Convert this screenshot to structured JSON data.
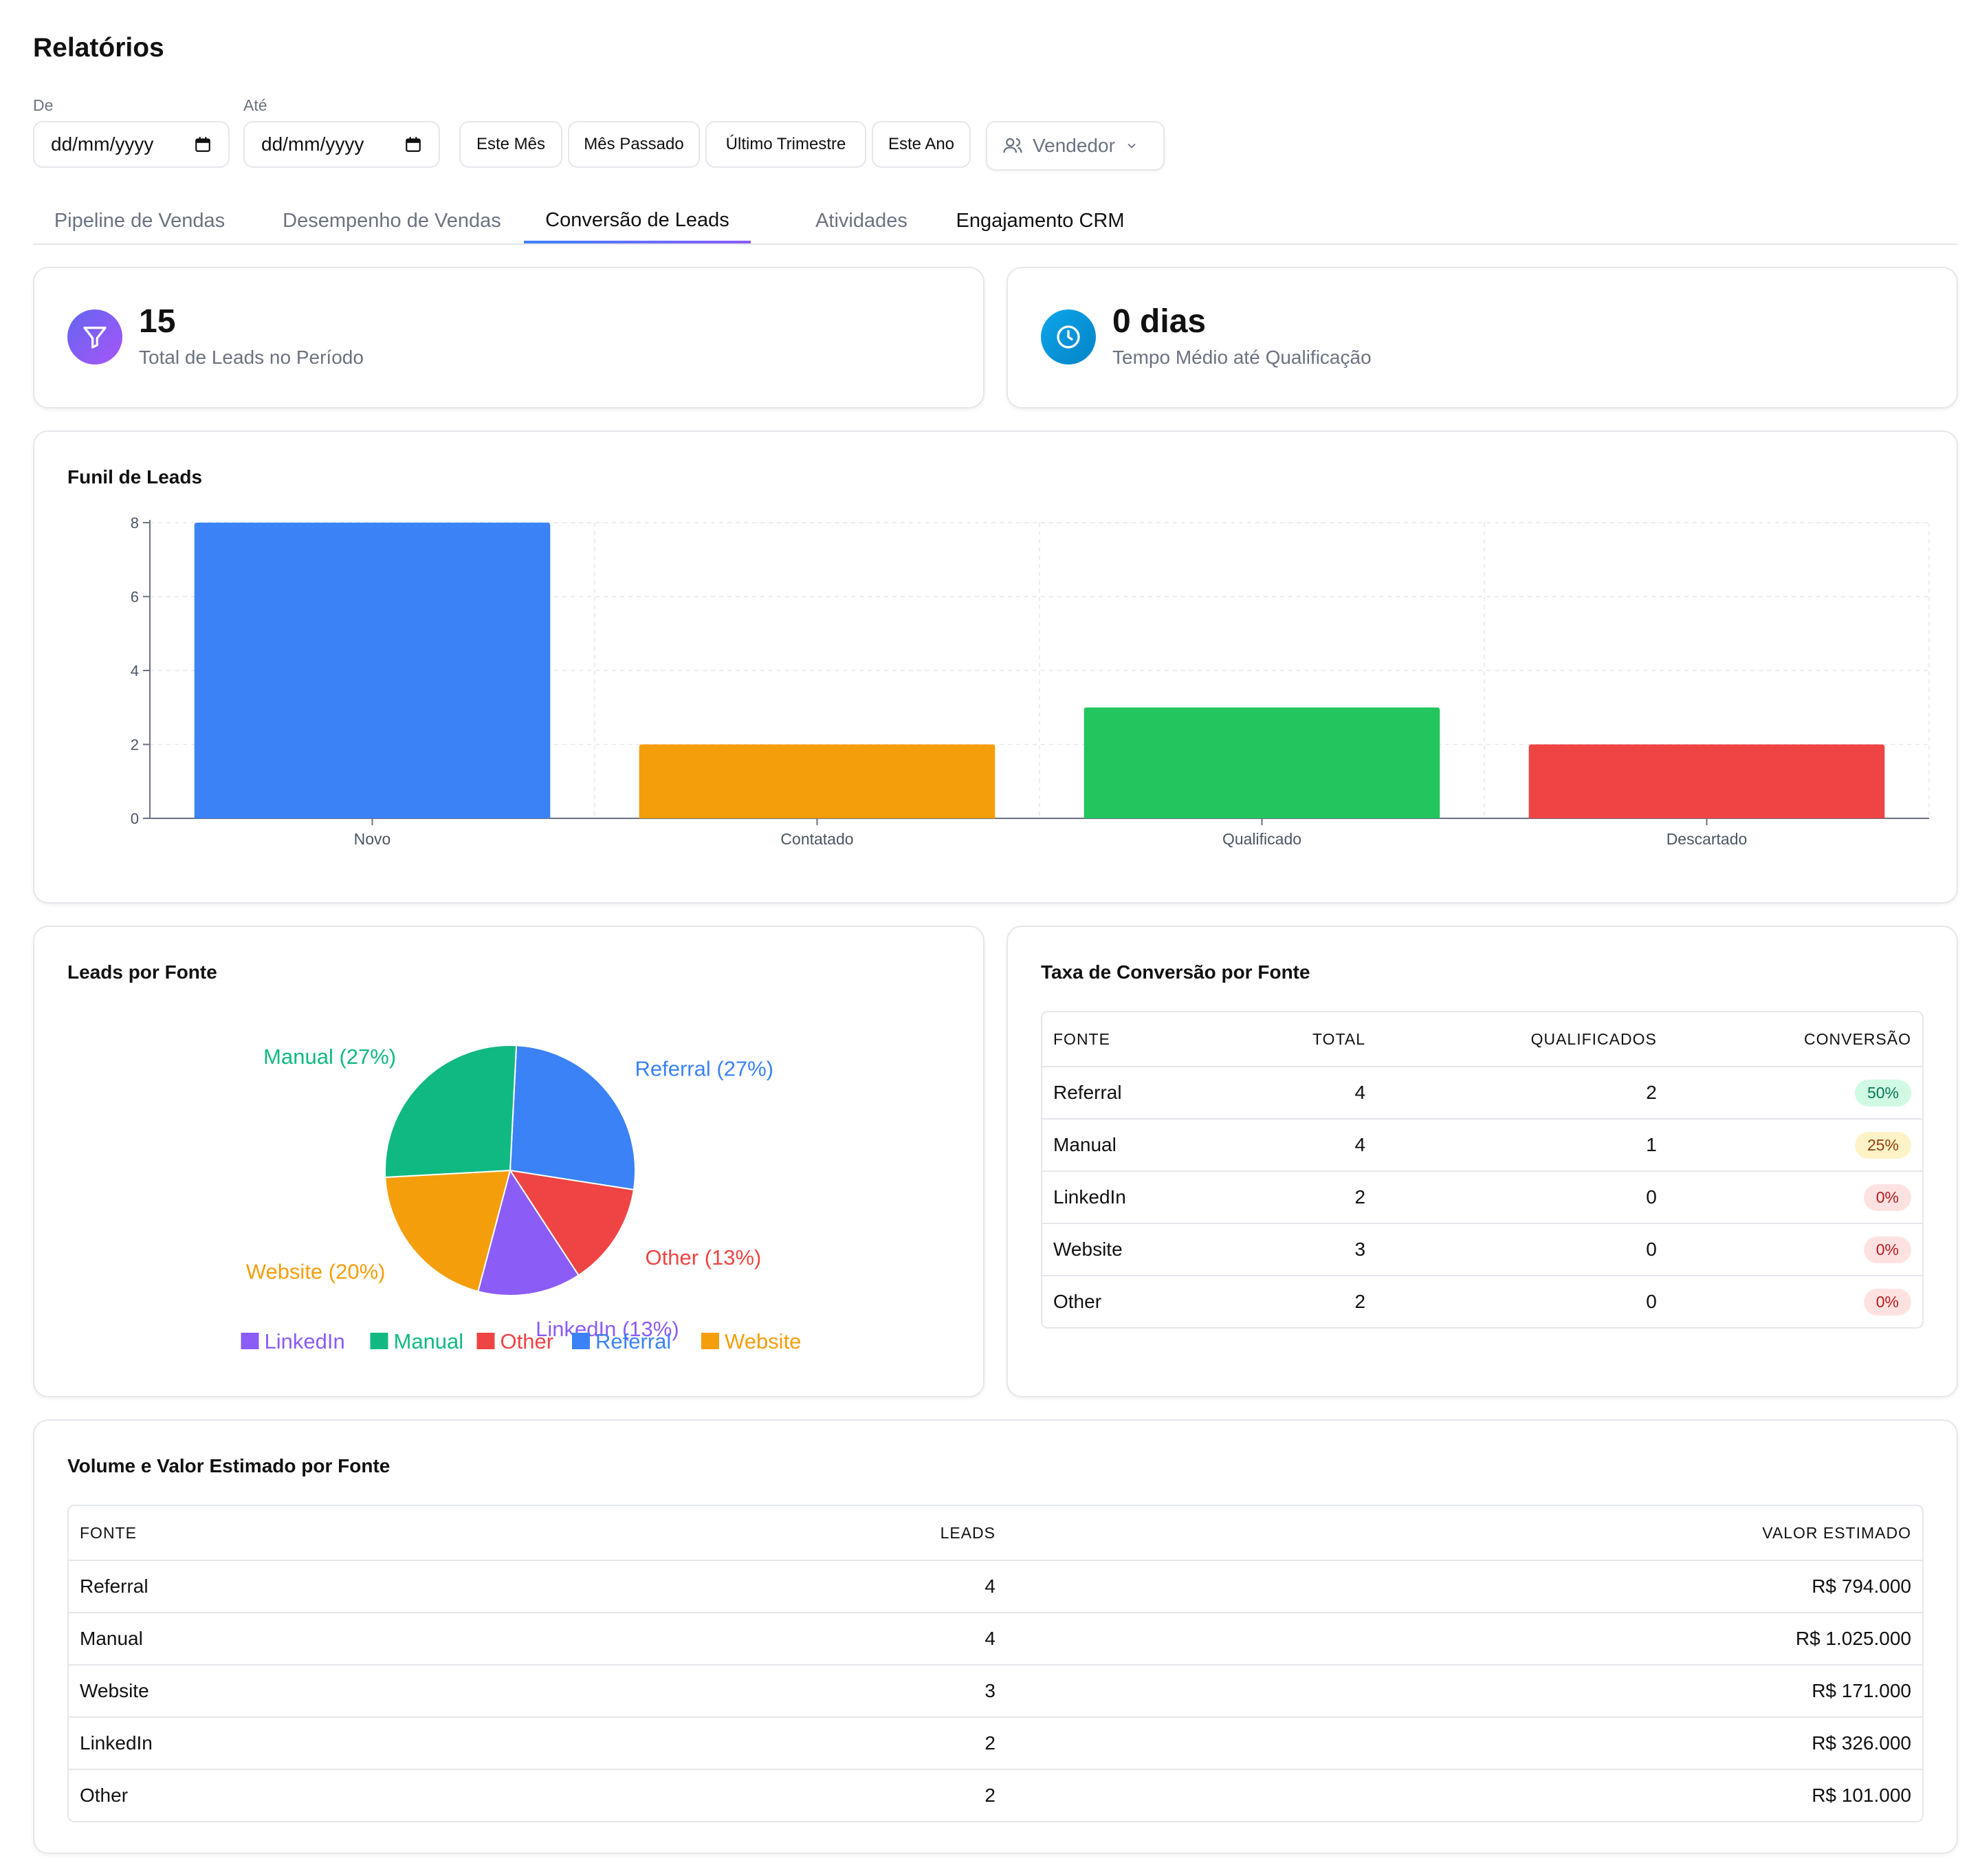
{
  "header": {
    "title": "Relatórios"
  },
  "filters": {
    "from_label": "De",
    "to_label": "Até",
    "from_value": "dd/mm/yyyy",
    "to_value": "dd/mm/yyyy",
    "quick": [
      "Este Mês",
      "Mês Passado",
      "Último Trimestre",
      "Este Ano"
    ],
    "seller_placeholder": "Vendedor"
  },
  "tabs": [
    {
      "label": "Pipeline de Vendas"
    },
    {
      "label": "Desempenho de Vendas"
    },
    {
      "label": "Conversão de Leads",
      "active": true
    },
    {
      "label": "Atividades"
    },
    {
      "label": "Engajamento CRM"
    }
  ],
  "kpis": [
    {
      "value": "15",
      "label": "Total de Leads no Período",
      "icon": "filter-icon",
      "color": "#8b5cf6"
    },
    {
      "value": "0 dias",
      "label": "Tempo Médio até Qualificação",
      "icon": "clock-icon",
      "color": "#0ea5e9"
    }
  ],
  "funnel": {
    "title": "Funil de Leads",
    "chart_data": {
      "type": "bar",
      "categories": [
        "Novo",
        "Contatado",
        "Qualificado",
        "Descartado"
      ],
      "values": [
        8,
        2,
        3,
        2
      ],
      "colors": [
        "#3b82f6",
        "#f59e0b",
        "#22c55e",
        "#ef4444"
      ],
      "yticks": [
        0,
        2,
        4,
        6,
        8
      ],
      "ylim": [
        0,
        8
      ],
      "grid": true
    }
  },
  "sources_pie": {
    "title": "Leads por Fonte",
    "chart_data": {
      "type": "pie",
      "slices": [
        {
          "name": "Referral",
          "value": 4,
          "label": "Referral (27%)",
          "color": "#3b82f6"
        },
        {
          "name": "Other",
          "value": 2,
          "label": "Other (13%)",
          "color": "#ef4444"
        },
        {
          "name": "LinkedIn",
          "value": 2,
          "label": "LinkedIn (13%)",
          "color": "#8b5cf6"
        },
        {
          "name": "Website",
          "value": 3,
          "label": "Website (20%)",
          "color": "#f59e0b"
        },
        {
          "name": "Manual",
          "value": 4,
          "label": "Manual (27%)",
          "color": "#10b981"
        }
      ],
      "legend": [
        {
          "name": "LinkedIn",
          "color": "#8b5cf6"
        },
        {
          "name": "Manual",
          "color": "#10b981"
        },
        {
          "name": "Other",
          "color": "#ef4444"
        },
        {
          "name": "Referral",
          "color": "#3b82f6"
        },
        {
          "name": "Website",
          "color": "#f59e0b"
        }
      ],
      "legend_position": "bottom"
    }
  },
  "conversion": {
    "title": "Taxa de Conversão por Fonte",
    "headers": [
      "FONTE",
      "TOTAL",
      "QUALIFICADOS",
      "CONVERSÃO"
    ],
    "rows": [
      {
        "source": "Referral",
        "total": "4",
        "qualified": "2",
        "rate": "50%",
        "tone": "green"
      },
      {
        "source": "Manual",
        "total": "4",
        "qualified": "1",
        "rate": "25%",
        "tone": "yellow"
      },
      {
        "source": "LinkedIn",
        "total": "2",
        "qualified": "0",
        "rate": "0%",
        "tone": "red"
      },
      {
        "source": "Website",
        "total": "3",
        "qualified": "0",
        "rate": "0%",
        "tone": "red"
      },
      {
        "source": "Other",
        "total": "2",
        "qualified": "0",
        "rate": "0%",
        "tone": "red"
      }
    ]
  },
  "volume": {
    "title": "Volume e Valor Estimado por Fonte",
    "headers": [
      "FONTE",
      "LEADS",
      "VALOR ESTIMADO"
    ],
    "rows": [
      {
        "source": "Referral",
        "leads": "4",
        "value": "R$ 794.000"
      },
      {
        "source": "Manual",
        "leads": "4",
        "value": "R$ 1.025.000"
      },
      {
        "source": "Website",
        "leads": "3",
        "value": "R$ 171.000"
      },
      {
        "source": "LinkedIn",
        "leads": "2",
        "value": "R$ 326.000"
      },
      {
        "source": "Other",
        "leads": "2",
        "value": "R$ 101.000"
      }
    ]
  }
}
